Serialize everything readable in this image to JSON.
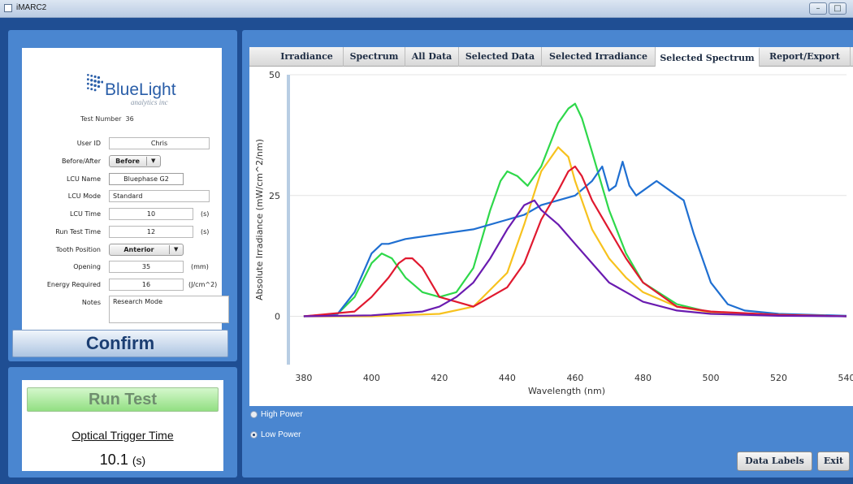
{
  "window": {
    "title": "iMARC2"
  },
  "form": {
    "logo_text": "BlueLight",
    "logo_sub": "analytics inc",
    "test_number_label": "Test Number",
    "test_number": "36",
    "user_id_label": "User ID",
    "user_id": "Chris",
    "before_after_label": "Before/After",
    "before_after": "Before",
    "lcu_name_label": "LCU Name",
    "lcu_name": "Bluephase G2",
    "lcu_mode_label": "LCU Mode",
    "lcu_mode": "Standard",
    "lcu_time_label": "LCU Time",
    "lcu_time": "10",
    "lcu_time_unit": "(s)",
    "run_test_time_label": "Run Test Time",
    "run_test_time": "12",
    "run_test_time_unit": "(s)",
    "tooth_position_label": "Tooth Position",
    "tooth_position": "Anterior",
    "opening_label": "Opening",
    "opening": "35",
    "opening_unit": "(mm)",
    "energy_required_label": "Energy Required",
    "energy_required": "16",
    "energy_required_unit": "(J/cm^2)",
    "notes_label": "Notes",
    "notes": "Research Mode"
  },
  "confirm_label": "Confirm",
  "run_test_label": "Run Test",
  "optical_trigger_label": "Optical Trigger Time",
  "optical_trigger_value": "10.1",
  "optical_trigger_unit": "(s)",
  "tabs": [
    "Irradiance",
    "Spectrum",
    "All Data",
    "Selected Data",
    "Selected Irradiance",
    "Selected Spectrum",
    "Report/Export"
  ],
  "active_tab": "Selected Spectrum",
  "radio": {
    "high_power": "High Power",
    "low_power": "Low Power",
    "selected": "Low Power"
  },
  "buttons": {
    "data_labels": "Data Labels",
    "exit": "Exit"
  },
  "icons": [
    "app-icon",
    "minimize-icon",
    "maximize-icon",
    "dropdown-arrow-icon",
    "logo-dots-icon"
  ],
  "colors": {
    "panel": "#4a86d0",
    "background": "#1f4e93",
    "green_series": "#2ed84a",
    "blue_series": "#1f6fd1",
    "yellow_series": "#f7c21e",
    "red_series": "#e0192f",
    "purple_series": "#6a1bb0"
  },
  "chart_data": {
    "type": "line",
    "xlabel": "Wavelength (nm)",
    "ylabel": "Absolute Irradiance (mW/cm^2/nm)",
    "xlim": [
      375,
      540
    ],
    "ylim": [
      -10,
      50
    ],
    "xticks": [
      380,
      400,
      420,
      440,
      460,
      480,
      500,
      520,
      540
    ],
    "yticks": [
      0,
      25,
      50
    ],
    "grid": true,
    "series": [
      {
        "color": "#2ed84a",
        "x": [
          380,
          390,
          395,
          400,
          403,
          406,
          410,
          415,
          420,
          425,
          430,
          435,
          438,
          440,
          443,
          446,
          450,
          455,
          458,
          460,
          462,
          465,
          470,
          475,
          480,
          490,
          500,
          510,
          520,
          540
        ],
        "y": [
          0,
          0.5,
          4,
          11,
          13,
          12,
          8,
          5,
          4,
          5,
          10,
          22,
          28,
          30,
          29,
          27,
          31,
          40,
          43,
          44,
          41,
          34,
          22,
          13,
          7,
          2.5,
          0.8,
          0.4,
          0.2,
          0
        ]
      },
      {
        "color": "#1f6fd1",
        "x": [
          380,
          390,
          395,
          400,
          403,
          405,
          410,
          420,
          430,
          440,
          445,
          450,
          455,
          460,
          465,
          468,
          470,
          472,
          474,
          476,
          478,
          480,
          484,
          488,
          490,
          492,
          495,
          500,
          505,
          510,
          520,
          540
        ],
        "y": [
          0,
          0.5,
          5,
          13,
          15,
          15,
          16,
          17,
          18,
          20,
          21,
          23,
          24,
          25,
          28,
          31,
          26,
          27,
          32,
          27,
          25,
          26,
          28,
          26,
          25,
          24,
          17,
          7,
          2.5,
          1.2,
          0.5,
          0.1
        ]
      },
      {
        "color": "#f7c21e",
        "x": [
          380,
          400,
          420,
          430,
          440,
          445,
          450,
          455,
          458,
          460,
          465,
          470,
          475,
          480,
          490,
          500,
          520,
          540
        ],
        "y": [
          0,
          0,
          0.5,
          2,
          9,
          19,
          30,
          35,
          33,
          28,
          18,
          12,
          8,
          5,
          2,
          0.8,
          0.3,
          0
        ]
      },
      {
        "color": "#e0192f",
        "x": [
          380,
          395,
          400,
          405,
          408,
          410,
          412,
          415,
          420,
          430,
          440,
          445,
          450,
          455,
          458,
          460,
          462,
          465,
          470,
          475,
          480,
          490,
          500,
          520,
          540
        ],
        "y": [
          0,
          1,
          4,
          8,
          11,
          12,
          12,
          10,
          4,
          2,
          6,
          11,
          20,
          26,
          30,
          31,
          29,
          24,
          18,
          12,
          7,
          2,
          1,
          0.3,
          0
        ]
      },
      {
        "color": "#6a1bb0",
        "x": [
          380,
          400,
          415,
          420,
          425,
          430,
          435,
          440,
          445,
          448,
          450,
          455,
          460,
          465,
          470,
          480,
          490,
          500,
          520,
          540
        ],
        "y": [
          0,
          0.2,
          1,
          2,
          4,
          7,
          12,
          18,
          23,
          24,
          22,
          19,
          15,
          11,
          7,
          3,
          1.2,
          0.5,
          0.1,
          0
        ]
      }
    ]
  }
}
